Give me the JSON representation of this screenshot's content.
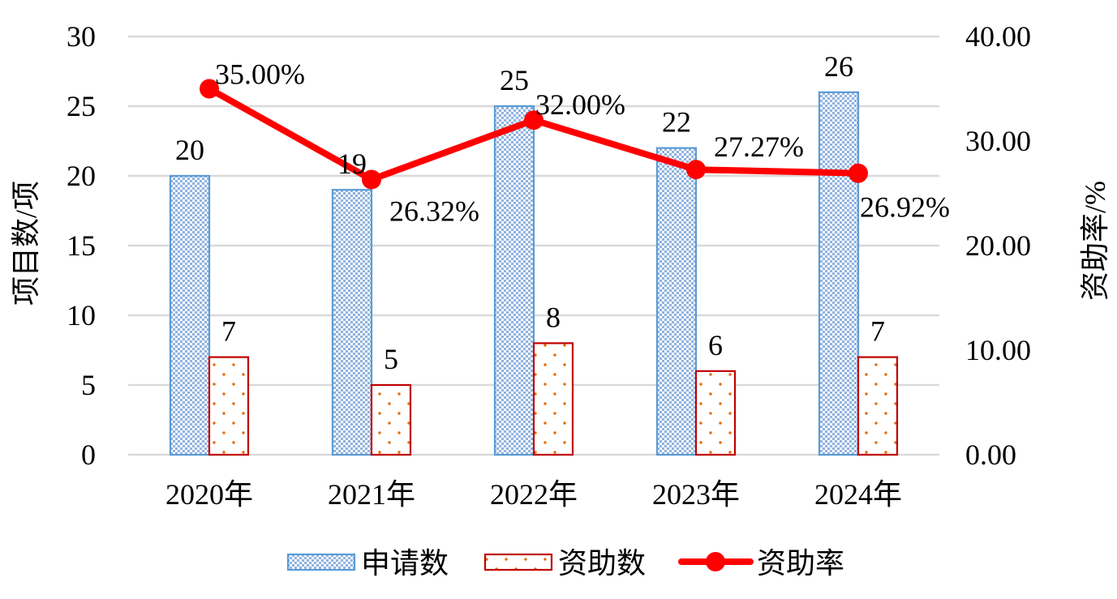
{
  "chart_data": {
    "type": "bar",
    "categories": [
      "2020年",
      "2021年",
      "2022年",
      "2023年",
      "2024年"
    ],
    "series": [
      {
        "name": "申请数",
        "type": "bar",
        "axis": "left",
        "values": [
          20,
          19,
          25,
          22,
          26
        ],
        "color": "#5b9bd5"
      },
      {
        "name": "资助数",
        "type": "bar",
        "axis": "left",
        "values": [
          7,
          5,
          8,
          6,
          7
        ],
        "color": "#c00000"
      },
      {
        "name": "资助率",
        "type": "line",
        "axis": "right",
        "values": [
          35.0,
          26.32,
          32.0,
          27.27,
          26.92
        ],
        "labels": [
          "35.00%",
          "26.32%",
          "32.00%",
          "27.27%",
          "26.92%"
        ],
        "color": "#ff0000"
      }
    ],
    "ylabel": "项目数/项",
    "y2label": "资助率/%",
    "ylim": [
      0,
      30
    ],
    "y2lim": [
      0,
      40
    ],
    "yticks": [
      "0",
      "5",
      "10",
      "15",
      "20",
      "25",
      "30"
    ],
    "y2ticks": [
      "0.00",
      "10.00",
      "20.00",
      "30.00",
      "40.00"
    ],
    "grid": true,
    "legend": "bottom"
  }
}
